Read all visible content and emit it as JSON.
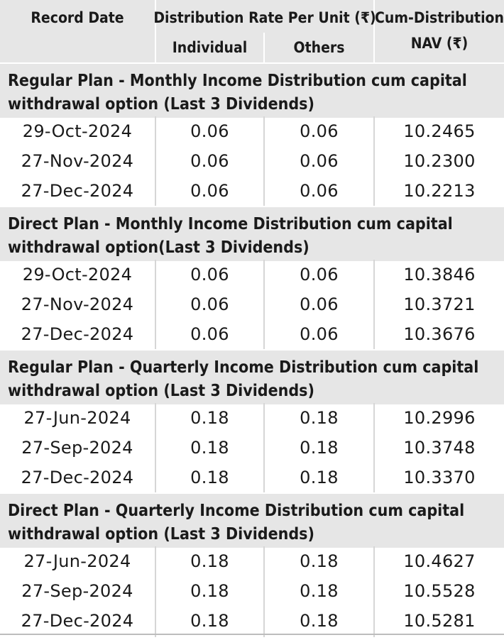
{
  "header": {
    "record_date": "Record Date",
    "distribution_rate": "Distribution Rate Per Unit (₹)",
    "individual": "Individual",
    "others": "Others",
    "cum_nav_line1": "Cum-Distribution",
    "cum_nav_line2": "NAV (₹)"
  },
  "sections": [
    {
      "title_line1": "Regular Plan - Monthly Income Distribution cum capital",
      "title_line2": "withdrawal option (Last 3 Dividends)",
      "rows": [
        {
          "date": "29-Oct-2024",
          "individual": "0.06",
          "others": "0.06",
          "nav": "10.2465"
        },
        {
          "date": "27-Nov-2024",
          "individual": "0.06",
          "others": "0.06",
          "nav": "10.2300"
        },
        {
          "date": "27-Dec-2024",
          "individual": "0.06",
          "others": "0.06",
          "nav": "10.2213"
        }
      ]
    },
    {
      "title_line1": "Direct Plan - Monthly Income Distribution cum capital",
      "title_line2": "withdrawal option(Last 3 Dividends)",
      "rows": [
        {
          "date": "29-Oct-2024",
          "individual": "0.06",
          "others": "0.06",
          "nav": "10.3846"
        },
        {
          "date": "27-Nov-2024",
          "individual": "0.06",
          "others": "0.06",
          "nav": "10.3721"
        },
        {
          "date": "27-Dec-2024",
          "individual": "0.06",
          "others": "0.06",
          "nav": "10.3676"
        }
      ]
    },
    {
      "title_line1": "Regular Plan - Quarterly Income Distribution cum capital",
      "title_line2": "withdrawal option (Last 3 Dividends)",
      "rows": [
        {
          "date": "27-Jun-2024",
          "individual": "0.18",
          "others": "0.18",
          "nav": "10.2996"
        },
        {
          "date": "27-Sep-2024",
          "individual": "0.18",
          "others": "0.18",
          "nav": "10.3748"
        },
        {
          "date": "27-Dec-2024",
          "individual": "0.18",
          "others": "0.18",
          "nav": "10.3370"
        }
      ]
    },
    {
      "title_line1": "Direct Plan - Quarterly Income Distribution cum capital",
      "title_line2": "withdrawal option (Last 3 Dividends)",
      "rows": [
        {
          "date": "27-Jun-2024",
          "individual": "0.18",
          "others": "0.18",
          "nav": "10.4627"
        },
        {
          "date": "27-Sep-2024",
          "individual": "0.18",
          "others": "0.18",
          "nav": "10.5528"
        },
        {
          "date": "27-Dec-2024",
          "individual": "0.18",
          "others": "0.18",
          "nav": "10.5281"
        }
      ]
    }
  ]
}
